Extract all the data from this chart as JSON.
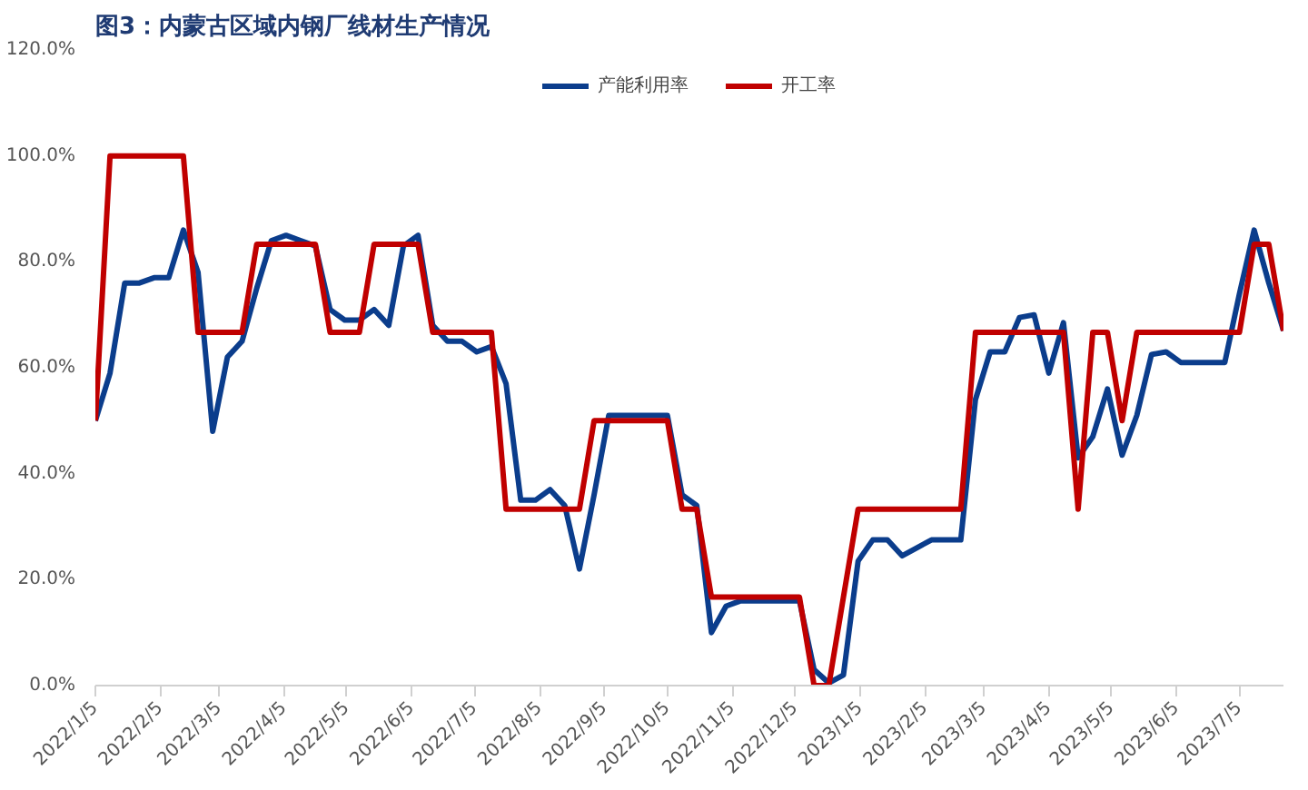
{
  "chart_data": {
    "type": "line",
    "title": "图3：内蒙古区域内钢厂线材生产情况",
    "x": [
      "2022-01-05",
      "2022-01-12",
      "2022-01-19",
      "2022-01-26",
      "2022-02-02",
      "2022-02-09",
      "2022-02-16",
      "2022-02-23",
      "2022-03-02",
      "2022-03-09",
      "2022-03-16",
      "2022-03-23",
      "2022-03-30",
      "2022-04-06",
      "2022-04-13",
      "2022-04-20",
      "2022-04-27",
      "2022-05-04",
      "2022-05-11",
      "2022-05-18",
      "2022-05-25",
      "2022-06-01",
      "2022-06-08",
      "2022-06-15",
      "2022-06-22",
      "2022-06-29",
      "2022-07-06",
      "2022-07-13",
      "2022-07-20",
      "2022-07-27",
      "2022-08-03",
      "2022-08-10",
      "2022-08-17",
      "2022-08-24",
      "2022-08-31",
      "2022-09-07",
      "2022-09-14",
      "2022-09-21",
      "2022-09-28",
      "2022-10-05",
      "2022-10-12",
      "2022-10-19",
      "2022-10-26",
      "2022-11-02",
      "2022-11-09",
      "2022-11-16",
      "2022-11-23",
      "2022-11-30",
      "2022-12-07",
      "2022-12-14",
      "2022-12-21",
      "2022-12-28",
      "2023-01-04",
      "2023-01-11",
      "2023-01-18",
      "2023-01-25",
      "2023-02-01",
      "2023-02-08",
      "2023-02-15",
      "2023-02-22",
      "2023-03-01",
      "2023-03-08",
      "2023-03-15",
      "2023-03-22",
      "2023-03-29",
      "2023-04-05",
      "2023-04-12",
      "2023-04-19",
      "2023-04-26",
      "2023-05-03",
      "2023-05-10",
      "2023-05-17",
      "2023-05-24",
      "2023-05-31",
      "2023-06-07",
      "2023-06-14",
      "2023-06-21",
      "2023-06-28",
      "2023-07-05",
      "2023-07-12",
      "2023-07-19",
      "2023-07-26"
    ],
    "series": [
      {
        "name": "产能利用率",
        "color": "#0b3d8c",
        "values": [
          50,
          59,
          76,
          76,
          77,
          77,
          86,
          78,
          48,
          62,
          65,
          75,
          84,
          85,
          84,
          83,
          71,
          69,
          69,
          71,
          68,
          83,
          85,
          68,
          65,
          65,
          63,
          64,
          57,
          35,
          35,
          37,
          34,
          22,
          36,
          51,
          51,
          51,
          51,
          51,
          36,
          34,
          10,
          15,
          16,
          16,
          16,
          16,
          16,
          3,
          0.5,
          2,
          23.5,
          27.5,
          27.5,
          24.5,
          26,
          27.5,
          27.5,
          27.5,
          54,
          63,
          63,
          69.5,
          70,
          59,
          68.5,
          43,
          47,
          56,
          43.5,
          51,
          62.5,
          63,
          61,
          61,
          61,
          61,
          74,
          86,
          76,
          67
        ]
      },
      {
        "name": "开工率",
        "color": "#c00000",
        "values": [
          50,
          100,
          100,
          100,
          100,
          100,
          100,
          66.7,
          66.7,
          66.7,
          66.7,
          83.3,
          83.3,
          83.3,
          83.3,
          83.3,
          66.7,
          66.7,
          66.7,
          83.3,
          83.3,
          83.3,
          83.3,
          66.7,
          66.7,
          66.7,
          66.7,
          66.7,
          33.3,
          33.3,
          33.3,
          33.3,
          33.3,
          33.3,
          50,
          50,
          50,
          50,
          50,
          50,
          33.3,
          33.3,
          16.7,
          16.7,
          16.7,
          16.7,
          16.7,
          16.7,
          16.7,
          0,
          0,
          16.7,
          33.3,
          33.3,
          33.3,
          33.3,
          33.3,
          33.3,
          33.3,
          33.3,
          66.7,
          66.7,
          66.7,
          66.7,
          66.7,
          66.7,
          66.7,
          33.3,
          66.7,
          66.7,
          50,
          66.7,
          66.7,
          66.7,
          66.7,
          66.7,
          66.7,
          66.7,
          66.7,
          83.3,
          83.3,
          67
        ]
      }
    ],
    "xlim": [
      "2022-01-05",
      "2023-07-26"
    ],
    "xticks": [
      {
        "value": "2022-01-05",
        "label": "2022/1/5"
      },
      {
        "value": "2022-02-05",
        "label": "2022/2/5"
      },
      {
        "value": "2022-03-05",
        "label": "2022/3/5"
      },
      {
        "value": "2022-04-05",
        "label": "2022/4/5"
      },
      {
        "value": "2022-05-05",
        "label": "2022/5/5"
      },
      {
        "value": "2022-06-05",
        "label": "2022/6/5"
      },
      {
        "value": "2022-07-05",
        "label": "2022/7/5"
      },
      {
        "value": "2022-08-05",
        "label": "2022/8/5"
      },
      {
        "value": "2022-09-05",
        "label": "2022/9/5"
      },
      {
        "value": "2022-10-05",
        "label": "2022/10/5"
      },
      {
        "value": "2022-11-05",
        "label": "2022/11/5"
      },
      {
        "value": "2022-12-05",
        "label": "2022/12/5"
      },
      {
        "value": "2023-01-05",
        "label": "2023/1/5"
      },
      {
        "value": "2023-02-05",
        "label": "2023/2/5"
      },
      {
        "value": "2023-03-05",
        "label": "2023/3/5"
      },
      {
        "value": "2023-04-05",
        "label": "2023/4/5"
      },
      {
        "value": "2023-05-05",
        "label": "2023/5/5"
      },
      {
        "value": "2023-06-05",
        "label": "2023/6/5"
      },
      {
        "value": "2023-07-05",
        "label": "2023/7/5"
      }
    ],
    "ylim": [
      0,
      120
    ],
    "yticks": [
      {
        "value": 0,
        "label": "0.0%"
      },
      {
        "value": 20,
        "label": "20.0%"
      },
      {
        "value": 40,
        "label": "40.0%"
      },
      {
        "value": 60,
        "label": "60.0%"
      },
      {
        "value": 80,
        "label": "80.0%"
      },
      {
        "value": 100,
        "label": "100.0%"
      },
      {
        "value": 120,
        "label": "120.0%"
      }
    ],
    "grid": false,
    "legend": "top",
    "marker": "none",
    "line_style": "solid"
  }
}
